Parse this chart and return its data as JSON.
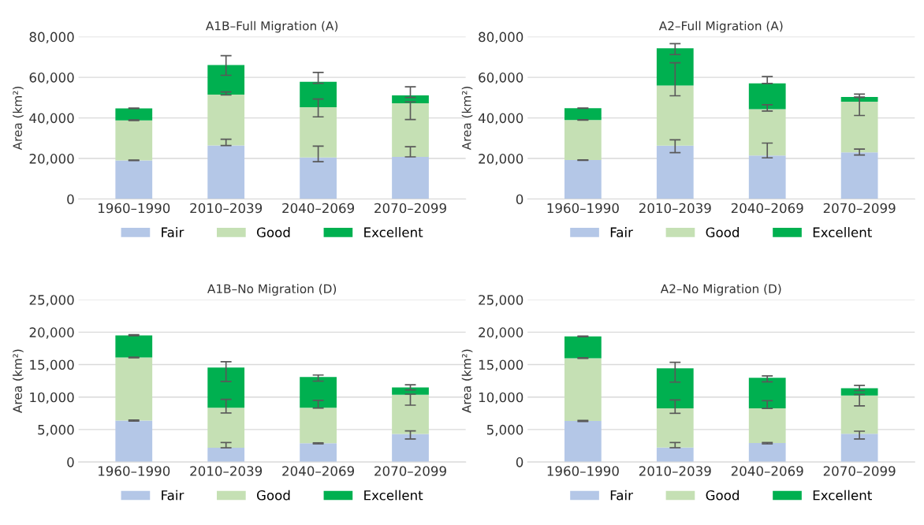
{
  "chart_data": [
    {
      "type": "bar",
      "title": "A1B–Full Migration (A)",
      "ylabel": "Area (km²)",
      "categories": [
        "1960–1990",
        "2010–2039",
        "2040–2069",
        "2070–2099"
      ],
      "stacked": true,
      "ylim": [
        0,
        80000
      ],
      "yticks": [
        {
          "value": 0,
          "label": "0"
        },
        {
          "value": 20000,
          "label": "20,000"
        },
        {
          "value": 40000,
          "label": "40,000"
        },
        {
          "value": 60000,
          "label": "60,000"
        },
        {
          "value": 80000,
          "label": "80,000"
        }
      ],
      "grid": "y",
      "legend": "bottom",
      "series": [
        {
          "name": "Fair",
          "color": "#b4c7e7",
          "values": [
            19000,
            26400,
            20500,
            20800
          ],
          "errors": [
            [
              19000,
              19200
            ],
            [
              26500,
              29500
            ],
            [
              18400,
              26100
            ],
            [
              20800,
              25800
            ]
          ]
        },
        {
          "name": "Good",
          "color": "#c5e0b4",
          "values": [
            19800,
            25100,
            24800,
            26400
          ],
          "errors": [
            [
              38700,
              39000
            ],
            [
              51300,
              52800
            ],
            [
              40500,
              49300
            ],
            [
              39200,
              47900
            ]
          ]
        },
        {
          "name": "Excellent",
          "color": "#00b050",
          "values": [
            5900,
            14600,
            12500,
            3900
          ],
          "errors": [
            [
              44600,
              44900
            ],
            [
              61000,
              70700
            ],
            [
              57100,
              62400
            ],
            [
              50100,
              55300
            ]
          ]
        }
      ]
    },
    {
      "type": "bar",
      "title": "A2–Full Migration (A)",
      "ylabel": "Area (km²)",
      "categories": [
        "1960–1990",
        "2010–2039",
        "2040–2069",
        "2070–2099"
      ],
      "stacked": true,
      "ylim": [
        0,
        80000
      ],
      "yticks": [
        {
          "value": 0,
          "label": "0"
        },
        {
          "value": 20000,
          "label": "20,000"
        },
        {
          "value": 40000,
          "label": "40,000"
        },
        {
          "value": 60000,
          "label": "60,000"
        },
        {
          "value": 80000,
          "label": "80,000"
        }
      ],
      "grid": "y",
      "legend": "bottom",
      "series": [
        {
          "name": "Fair",
          "color": "#b4c7e7",
          "values": [
            19200,
            26300,
            21500,
            23000
          ],
          "errors": [
            [
              19100,
              19300
            ],
            [
              22900,
              29200
            ],
            [
              20300,
              27600
            ],
            [
              21700,
              24600
            ]
          ]
        },
        {
          "name": "Good",
          "color": "#c5e0b4",
          "values": [
            19800,
            29700,
            22800,
            25000
          ],
          "errors": [
            [
              38900,
              39100
            ],
            [
              50900,
              67200
            ],
            [
              43400,
              46500
            ],
            [
              41200,
              50200
            ]
          ]
        },
        {
          "name": "Excellent",
          "color": "#00b050",
          "values": [
            5800,
            18300,
            12700,
            2300
          ],
          "errors": [
            [
              44700,
              44900
            ],
            [
              71200,
              76600
            ],
            [
              57000,
              60400
            ],
            [
              50200,
              51700
            ]
          ]
        }
      ]
    },
    {
      "type": "bar",
      "title": "A1B–No Migration (D)",
      "ylabel": "Area (km²)",
      "categories": [
        "1960–1990",
        "2010–2039",
        "2040–2069",
        "2070–2099"
      ],
      "stacked": true,
      "ylim": [
        0,
        25000
      ],
      "yticks": [
        {
          "value": 0,
          "label": "0"
        },
        {
          "value": 5000,
          "label": "5,000"
        },
        {
          "value": 10000,
          "label": "10,000"
        },
        {
          "value": 15000,
          "label": "15,000"
        },
        {
          "value": 20000,
          "label": "20,000"
        },
        {
          "value": 25000,
          "label": "25,000"
        }
      ],
      "grid": "y",
      "legend": "bottom",
      "series": [
        {
          "name": "Fair",
          "color": "#b4c7e7",
          "values": [
            6380,
            2190,
            2900,
            4330
          ],
          "errors": [
            [
              6300,
              6450
            ],
            [
              2200,
              3000
            ],
            [
              2800,
              2950
            ],
            [
              3550,
              4800
            ]
          ]
        },
        {
          "name": "Good",
          "color": "#c5e0b4",
          "values": [
            9720,
            6160,
            5450,
            6020
          ],
          "errors": [
            [
              16050,
              16150
            ],
            [
              7550,
              9650
            ],
            [
              8300,
              9500
            ],
            [
              8750,
              10450
            ]
          ]
        },
        {
          "name": "Excellent",
          "color": "#00b050",
          "values": [
            3400,
            6200,
            4750,
            1120
          ],
          "errors": [
            [
              19450,
              19600
            ],
            [
              12400,
              15450
            ],
            [
              12450,
              13400
            ],
            [
              11100,
              11900
            ]
          ]
        }
      ]
    },
    {
      "type": "bar",
      "title": "A2–No Migration (D)",
      "ylabel": "Area (km²)",
      "categories": [
        "1960–1990",
        "2010–2039",
        "2040–2069",
        "2070–2099"
      ],
      "stacked": true,
      "ylim": [
        0,
        25000
      ],
      "yticks": [
        {
          "value": 0,
          "label": "0"
        },
        {
          "value": 5000,
          "label": "5,000"
        },
        {
          "value": 10000,
          "label": "10,000"
        },
        {
          "value": 15000,
          "label": "15,000"
        },
        {
          "value": 20000,
          "label": "20,000"
        },
        {
          "value": 25000,
          "label": "25,000"
        }
      ],
      "grid": "y",
      "legend": "bottom",
      "series": [
        {
          "name": "Fair",
          "color": "#b4c7e7",
          "values": [
            6320,
            2220,
            2920,
            4360
          ],
          "errors": [
            [
              6250,
              6400
            ],
            [
              2200,
              3000
            ],
            [
              2800,
              3000
            ],
            [
              3550,
              4750
            ]
          ]
        },
        {
          "name": "Good",
          "color": "#c5e0b4",
          "values": [
            9670,
            6060,
            5360,
            5880
          ],
          "errors": [
            [
              15950,
              16050
            ],
            [
              7500,
              9550
            ],
            [
              8250,
              9450
            ],
            [
              8650,
              10400
            ]
          ]
        },
        {
          "name": "Excellent",
          "color": "#00b050",
          "values": [
            3350,
            6140,
            4700,
            1130
          ],
          "errors": [
            [
              19300,
              19400
            ],
            [
              12300,
              15350
            ],
            [
              12350,
              13250
            ],
            [
              11000,
              11800
            ]
          ]
        }
      ]
    }
  ]
}
